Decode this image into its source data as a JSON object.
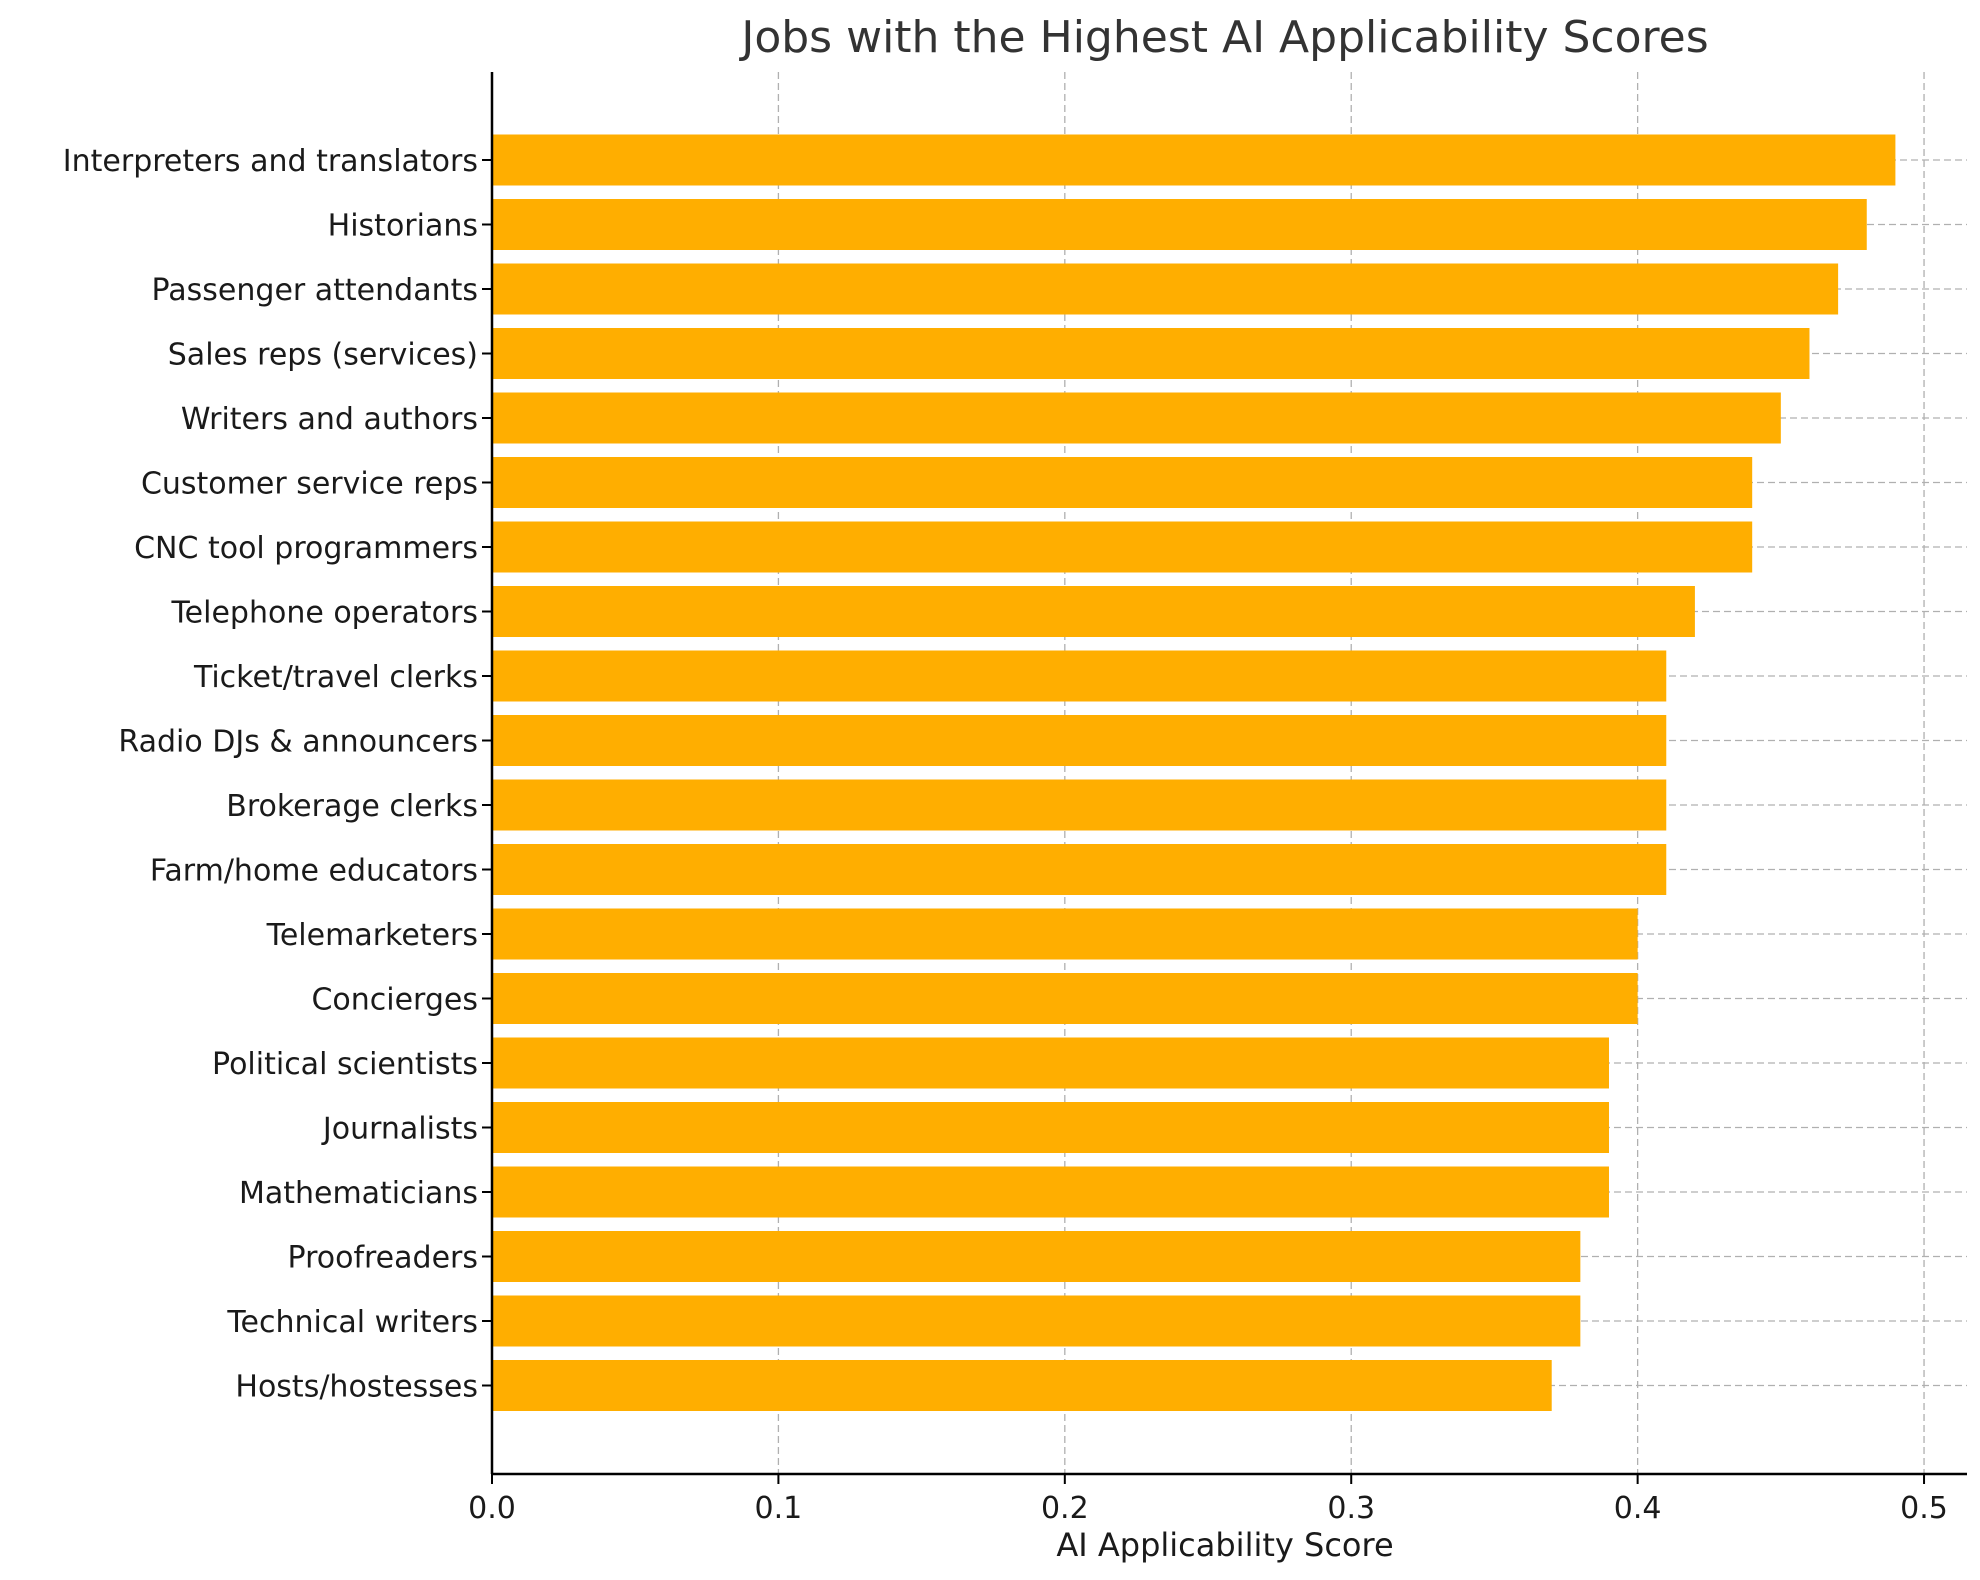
{
  "chart_data": {
    "type": "bar",
    "orientation": "horizontal",
    "title": "Jobs with the Highest AI Applicability Scores",
    "xlabel": "AI Applicability Score",
    "ylabel": "",
    "xlim": [
      0,
      0.515
    ],
    "xticks": [
      0.0,
      0.1,
      0.2,
      0.3,
      0.4,
      0.5
    ],
    "xtick_labels": [
      "0.0",
      "0.1",
      "0.2",
      "0.3",
      "0.4",
      "0.5"
    ],
    "grid": true,
    "bar_color": "#FFAE00",
    "categories": [
      "Interpreters and translators",
      "Historians",
      "Passenger attendants",
      "Sales reps (services)",
      "Writers and authors",
      "Customer service reps",
      "CNC tool programmers",
      "Telephone operators",
      "Ticket/travel clerks",
      "Radio DJs & announcers",
      "Brokerage clerks",
      "Farm/home educators",
      "Telemarketers",
      "Concierges",
      "Political scientists",
      "Journalists",
      "Mathematicians",
      "Proofreaders",
      "Technical writers",
      "Hosts/hostesses"
    ],
    "values": [
      0.49,
      0.48,
      0.47,
      0.46,
      0.45,
      0.44,
      0.44,
      0.42,
      0.41,
      0.41,
      0.41,
      0.41,
      0.4,
      0.4,
      0.39,
      0.39,
      0.39,
      0.38,
      0.38,
      0.37
    ]
  }
}
